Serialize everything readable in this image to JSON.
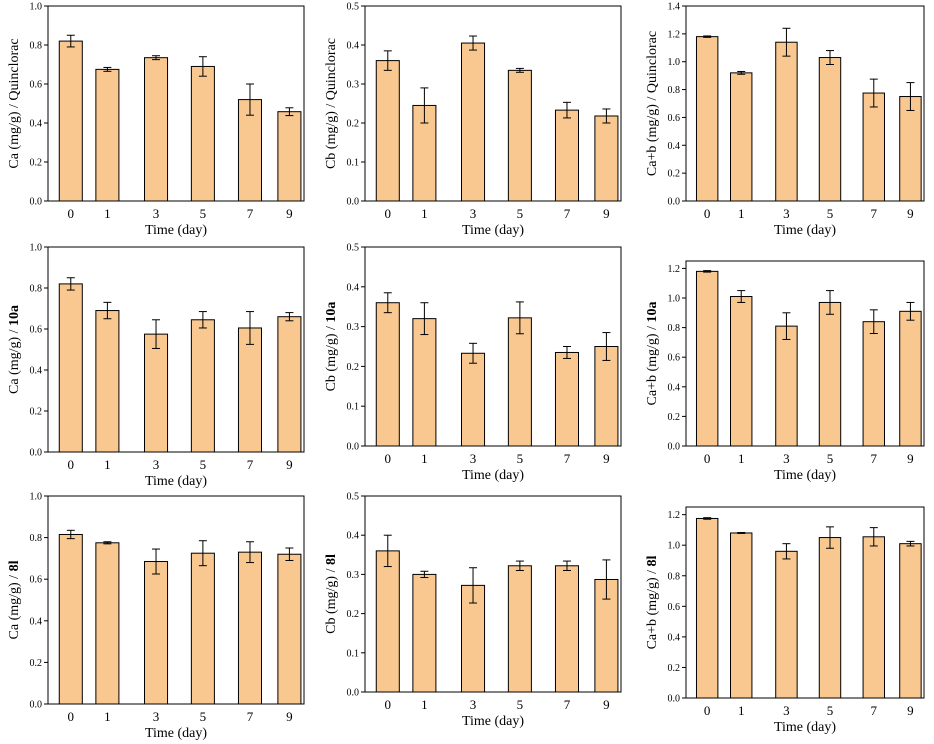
{
  "figure": {
    "bar_color": "#f9c891",
    "edge_color": "#000000"
  },
  "chart_data": [
    {
      "type": "bar",
      "title": "",
      "categories": [
        "0",
        "1",
        "3",
        "5",
        "7",
        "9"
      ],
      "values": [
        0.82,
        0.675,
        0.735,
        0.69,
        0.52,
        0.458
      ],
      "errors": [
        0.03,
        0.01,
        0.01,
        0.05,
        0.08,
        0.02
      ],
      "xlabel": "Time (day)",
      "ylabel_prefix": "Ca (mg/g) /",
      "ylabel_suffix": "Quinclorac",
      "ylabel_bold": false,
      "ylim": [
        0,
        1.0
      ],
      "yticks": [
        "0.0",
        "0.2",
        "0.4",
        "0.6",
        "0.8",
        "1.0"
      ],
      "ytick_values": [
        0,
        0.2,
        0.4,
        0.6,
        0.8,
        1.0
      ]
    },
    {
      "type": "bar",
      "title": "",
      "categories": [
        "0",
        "1",
        "3",
        "5",
        "7",
        "9"
      ],
      "values": [
        0.36,
        0.245,
        0.405,
        0.335,
        0.233,
        0.218
      ],
      "errors": [
        0.025,
        0.045,
        0.018,
        0.005,
        0.02,
        0.018
      ],
      "xlabel": "Time (day)",
      "ylabel_prefix": "Cb (mg/g) /",
      "ylabel_suffix": "Quinclorac",
      "ylabel_bold": false,
      "ylim": [
        0,
        0.5
      ],
      "yticks": [
        "0.0",
        "0.1",
        "0.2",
        "0.3",
        "0.4",
        "0.5"
      ],
      "ytick_values": [
        0,
        0.1,
        0.2,
        0.3,
        0.4,
        0.5
      ]
    },
    {
      "type": "bar",
      "title": "",
      "categories": [
        "0",
        "1",
        "3",
        "5",
        "7",
        "9"
      ],
      "values": [
        1.18,
        0.92,
        1.14,
        1.03,
        0.775,
        0.75
      ],
      "errors": [
        0.005,
        0.01,
        0.1,
        0.05,
        0.1,
        0.1
      ],
      "xlabel": "Time (day)",
      "ylabel_prefix": "Ca+b (mg/g) /",
      "ylabel_suffix": "Quinclorac",
      "ylabel_bold": false,
      "ylim": [
        0,
        1.4
      ],
      "yticks": [
        "0.0",
        "0.2",
        "0.4",
        "0.6",
        "0.8",
        "1.0",
        "1.2",
        "1.4"
      ],
      "ytick_values": [
        0,
        0.2,
        0.4,
        0.6,
        0.8,
        1.0,
        1.2,
        1.4
      ]
    },
    {
      "type": "bar",
      "title": "",
      "categories": [
        "0",
        "1",
        "3",
        "5",
        "7",
        "9"
      ],
      "values": [
        0.82,
        0.69,
        0.575,
        0.645,
        0.605,
        0.66
      ],
      "errors": [
        0.03,
        0.04,
        0.07,
        0.04,
        0.08,
        0.02
      ],
      "xlabel": "Time (day)",
      "ylabel_prefix": "Ca (mg/g) /",
      "ylabel_suffix": "10a",
      "ylabel_bold": true,
      "ylim": [
        0,
        1.0
      ],
      "yticks": [
        "0.0",
        "0.2",
        "0.4",
        "0.6",
        "0.8",
        "1.0"
      ],
      "ytick_values": [
        0,
        0.2,
        0.4,
        0.6,
        0.8,
        1.0
      ]
    },
    {
      "type": "bar",
      "title": "",
      "categories": [
        "0",
        "1",
        "3",
        "5",
        "7",
        "9"
      ],
      "values": [
        0.36,
        0.32,
        0.233,
        0.322,
        0.235,
        0.25
      ],
      "errors": [
        0.025,
        0.04,
        0.025,
        0.04,
        0.015,
        0.035
      ],
      "xlabel": "Time (day)",
      "ylabel_prefix": "Cb (mg/g) /",
      "ylabel_suffix": "10a",
      "ylabel_bold": true,
      "ylim": [
        0,
        0.5
      ],
      "yticks": [
        "0.0",
        "0.1",
        "0.2",
        "0.3",
        "0.4",
        "0.5"
      ],
      "ytick_values": [
        0,
        0.1,
        0.2,
        0.3,
        0.4,
        0.5
      ]
    },
    {
      "type": "bar",
      "title": "",
      "categories": [
        "0",
        "1",
        "3",
        "5",
        "7",
        "9"
      ],
      "values": [
        1.18,
        1.01,
        0.81,
        0.97,
        0.84,
        0.91
      ],
      "errors": [
        0.005,
        0.04,
        0.09,
        0.08,
        0.08,
        0.06
      ],
      "xlabel": "Time (day)",
      "ylabel_prefix": "Ca+b (mg/g) /",
      "ylabel_suffix": "10a",
      "ylabel_bold": true,
      "ylim": [
        0,
        1.25
      ],
      "yticks": [
        "0.0",
        "0.2",
        "0.4",
        "0.6",
        "0.8",
        "1.0",
        "1.2"
      ],
      "ytick_values": [
        0,
        0.2,
        0.4,
        0.6,
        0.8,
        1.0,
        1.2
      ]
    },
    {
      "type": "bar",
      "title": "",
      "categories": [
        "0",
        "1",
        "3",
        "5",
        "7",
        "9"
      ],
      "values": [
        0.815,
        0.775,
        0.685,
        0.725,
        0.73,
        0.72
      ],
      "errors": [
        0.02,
        0.005,
        0.06,
        0.06,
        0.05,
        0.03
      ],
      "xlabel": "Time (day)",
      "ylabel_prefix": "Ca (mg/g) /",
      "ylabel_suffix": "8l",
      "ylabel_bold": true,
      "ylim": [
        0,
        1.0
      ],
      "yticks": [
        "0.0",
        "0.2",
        "0.4",
        "0.6",
        "0.8",
        "1.0"
      ],
      "ytick_values": [
        0,
        0.2,
        0.4,
        0.6,
        0.8,
        1.0
      ]
    },
    {
      "type": "bar",
      "title": "",
      "categories": [
        "0",
        "1",
        "3",
        "5",
        "7",
        "9"
      ],
      "values": [
        0.36,
        0.3,
        0.272,
        0.322,
        0.322,
        0.287
      ],
      "errors": [
        0.04,
        0.008,
        0.045,
        0.012,
        0.012,
        0.05
      ],
      "xlabel": "Time (day)",
      "ylabel_prefix": "Cb (mg/g) /",
      "ylabel_suffix": "8l",
      "ylabel_bold": true,
      "ylim": [
        0,
        0.5
      ],
      "yticks": [
        "0.0",
        "0.1",
        "0.2",
        "0.3",
        "0.4",
        "0.5"
      ],
      "ytick_values": [
        0,
        0.1,
        0.2,
        0.3,
        0.4,
        0.5
      ]
    },
    {
      "type": "bar",
      "title": "",
      "categories": [
        "0",
        "1",
        "3",
        "5",
        "7",
        "9"
      ],
      "values": [
        1.175,
        1.08,
        0.96,
        1.05,
        1.055,
        1.01
      ],
      "errors": [
        0.005,
        0.003,
        0.05,
        0.07,
        0.06,
        0.015
      ],
      "xlabel": "Time (day)",
      "ylabel_prefix": "Ca+b (mg/g) /",
      "ylabel_suffix": "8l",
      "ylabel_bold": true,
      "ylim": [
        0,
        1.25
      ],
      "yticks": [
        "0.0",
        "0.2",
        "0.4",
        "0.6",
        "0.8",
        "1.0",
        "1.2"
      ],
      "ytick_values": [
        0,
        0.2,
        0.4,
        0.6,
        0.8,
        1.0,
        1.2
      ]
    }
  ]
}
